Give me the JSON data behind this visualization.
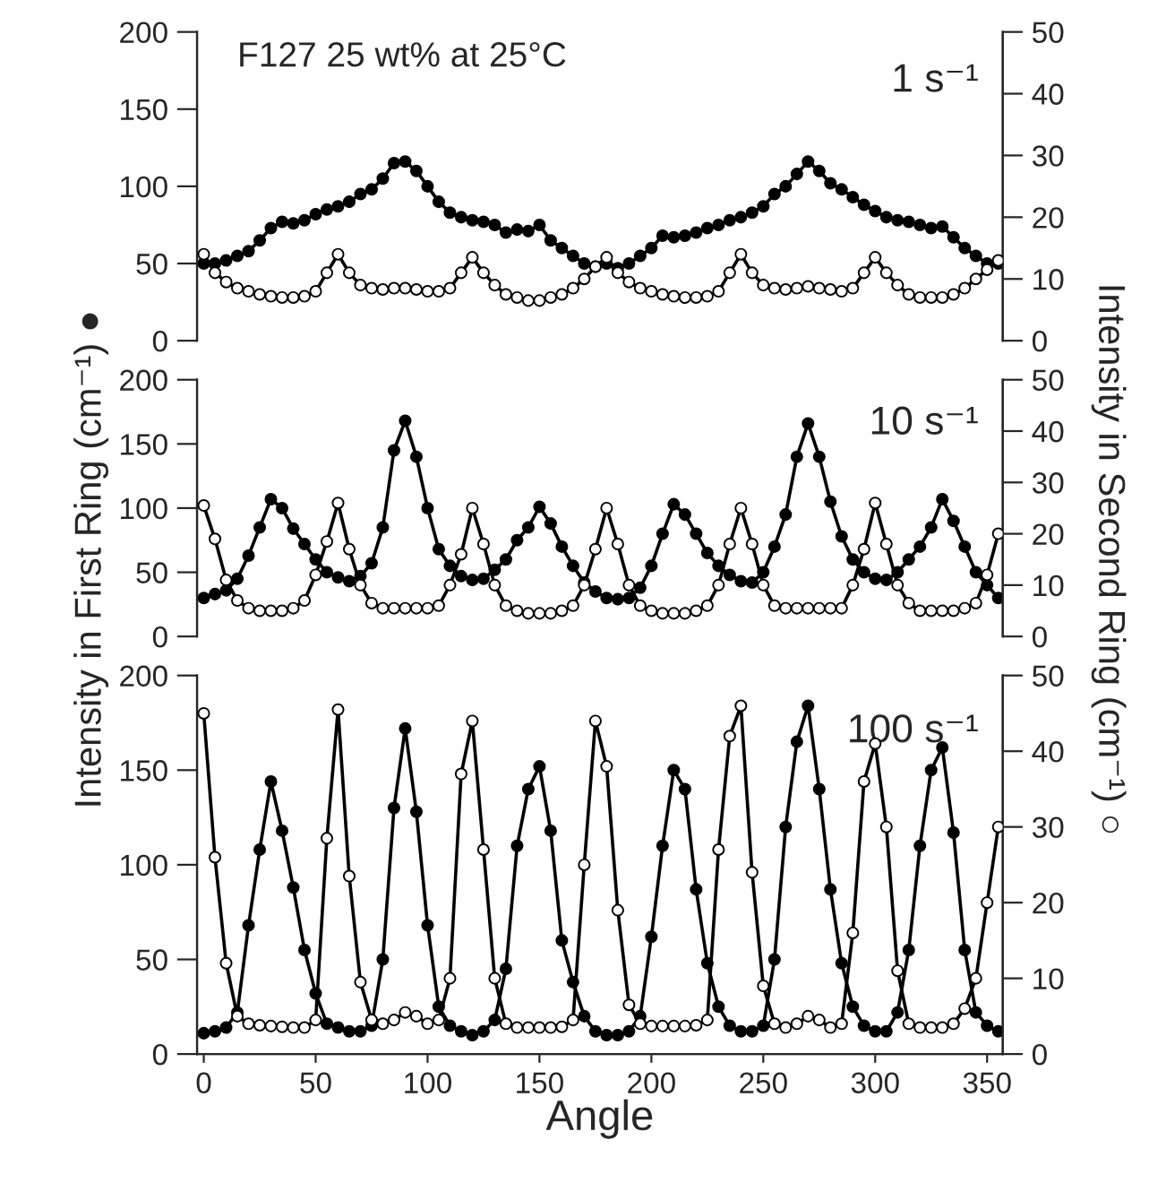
{
  "chart_data": [
    {
      "type": "line",
      "annotations": [
        "F127 25 wt% at 25°C",
        "1 s⁻¹"
      ],
      "x": [
        0,
        5,
        10,
        15,
        20,
        25,
        30,
        35,
        40,
        45,
        50,
        55,
        60,
        65,
        70,
        75,
        80,
        85,
        90,
        95,
        100,
        105,
        110,
        115,
        120,
        125,
        130,
        135,
        140,
        145,
        150,
        155,
        160,
        165,
        170,
        175,
        180,
        185,
        190,
        195,
        200,
        205,
        210,
        215,
        220,
        225,
        230,
        235,
        240,
        245,
        250,
        255,
        260,
        265,
        270,
        275,
        280,
        285,
        290,
        295,
        300,
        305,
        310,
        315,
        320,
        325,
        330,
        335,
        340,
        345,
        350,
        355
      ],
      "xlim": [
        -3,
        357
      ],
      "ylim": [
        0,
        200
      ],
      "yticks": [
        0,
        50,
        100,
        150,
        200
      ],
      "y2lim": [
        0,
        50
      ],
      "y2ticks": [
        0,
        10,
        20,
        30,
        40,
        50
      ],
      "tick_labels": "y",
      "marker": "circle",
      "line_style": "solid",
      "grid": false,
      "legend": false,
      "series": [
        {
          "color": "#000000",
          "values": [
            50,
            50,
            52,
            55,
            58,
            65,
            73,
            77,
            76,
            78,
            82,
            85,
            87,
            90,
            95,
            98,
            105,
            115,
            116,
            110,
            100,
            90,
            83,
            80,
            78,
            77,
            75,
            70,
            72,
            71,
            75,
            65,
            60,
            55,
            50,
            48,
            50,
            47,
            50,
            55,
            60,
            68,
            67,
            68,
            70,
            73,
            75,
            78,
            80,
            83,
            87,
            95,
            100,
            108,
            116,
            110,
            102,
            98,
            93,
            88,
            84,
            80,
            78,
            77,
            75,
            73,
            74,
            67,
            60,
            55,
            50,
            50
          ]
        },
        {
          "color": "#ffffff",
          "axis": "y2",
          "values": [
            14,
            11,
            9.5,
            8.5,
            8,
            7.5,
            7.2,
            7,
            7,
            7.2,
            8,
            11,
            14,
            11,
            9,
            8.5,
            8.3,
            8.5,
            8.5,
            8.3,
            8,
            8,
            8.5,
            11,
            13.5,
            11,
            9,
            7.5,
            7,
            6.5,
            6.5,
            7,
            7.5,
            8.5,
            10,
            12,
            13.5,
            11,
            9.5,
            8.5,
            8,
            7.5,
            7.2,
            7,
            7,
            7.2,
            8,
            11,
            14,
            11,
            9,
            8.5,
            8.3,
            8.5,
            8.8,
            8.5,
            8.3,
            8,
            8.5,
            11,
            13.5,
            11,
            9,
            7.5,
            7,
            7,
            7,
            7.5,
            8.5,
            10,
            11.5,
            13
          ]
        }
      ]
    },
    {
      "type": "line",
      "annotations": [
        "10 s⁻¹"
      ],
      "ylabel": "Intensity in First Ring (cm⁻¹) ●",
      "y2label": "Intensity in Second Ring (cm⁻¹) ○",
      "x": [
        0,
        5,
        10,
        15,
        20,
        25,
        30,
        35,
        40,
        45,
        50,
        55,
        60,
        65,
        70,
        75,
        80,
        85,
        90,
        95,
        100,
        105,
        110,
        115,
        120,
        125,
        130,
        135,
        140,
        145,
        150,
        155,
        160,
        165,
        170,
        175,
        180,
        185,
        190,
        195,
        200,
        205,
        210,
        215,
        220,
        225,
        230,
        235,
        240,
        245,
        250,
        255,
        260,
        265,
        270,
        275,
        280,
        285,
        290,
        295,
        300,
        305,
        310,
        315,
        320,
        325,
        330,
        335,
        340,
        345,
        350,
        355
      ],
      "xlim": [
        -3,
        357
      ],
      "ylim": [
        0,
        200
      ],
      "yticks": [
        0,
        50,
        100,
        150,
        200
      ],
      "y2lim": [
        0,
        50
      ],
      "y2ticks": [
        0,
        10,
        20,
        30,
        40,
        50
      ],
      "tick_labels": "y",
      "marker": "circle",
      "line_style": "solid",
      "grid": false,
      "legend": false,
      "series": [
        {
          "color": "#000000",
          "values": [
            30,
            33,
            36,
            45,
            63,
            85,
            107,
            100,
            84,
            72,
            60,
            50,
            46,
            43,
            47,
            57,
            85,
            145,
            168,
            140,
            100,
            68,
            55,
            47,
            44,
            45,
            52,
            60,
            75,
            85,
            101,
            88,
            70,
            55,
            42,
            35,
            30,
            29,
            30,
            38,
            55,
            80,
            103,
            95,
            80,
            65,
            55,
            48,
            43,
            42,
            50,
            70,
            95,
            140,
            166,
            140,
            105,
            78,
            60,
            50,
            45,
            44,
            50,
            60,
            70,
            85,
            107,
            90,
            70,
            50,
            40,
            30
          ]
        },
        {
          "color": "#ffffff",
          "axis": "y2",
          "values": [
            25.5,
            19,
            11,
            7,
            5.5,
            5,
            5,
            5,
            5.5,
            7,
            12,
            18.5,
            26,
            17,
            10,
            6.5,
            5.5,
            5.5,
            5.5,
            5.5,
            5.5,
            6,
            10,
            16,
            25,
            18,
            10,
            6,
            5,
            4.5,
            4.5,
            4.5,
            5,
            6,
            10,
            17,
            25,
            18,
            10,
            6,
            5,
            4.5,
            4.5,
            4.5,
            5,
            6,
            10,
            18,
            25,
            18,
            10,
            6,
            5.5,
            5.5,
            5.5,
            5.5,
            5.5,
            5.5,
            10,
            17,
            26,
            18,
            10,
            6.5,
            5,
            5,
            5,
            5,
            5.5,
            6.5,
            12,
            20
          ]
        }
      ]
    },
    {
      "type": "line",
      "annotations": [
        "100 s⁻¹"
      ],
      "xlabel": "Angle",
      "x": [
        0,
        5,
        10,
        15,
        20,
        25,
        30,
        35,
        40,
        45,
        50,
        55,
        60,
        65,
        70,
        75,
        80,
        85,
        90,
        95,
        100,
        105,
        110,
        115,
        120,
        125,
        130,
        135,
        140,
        145,
        150,
        155,
        160,
        165,
        170,
        175,
        180,
        185,
        190,
        195,
        200,
        205,
        210,
        215,
        220,
        225,
        230,
        235,
        240,
        245,
        250,
        255,
        260,
        265,
        270,
        275,
        280,
        285,
        290,
        295,
        300,
        305,
        310,
        315,
        320,
        325,
        330,
        335,
        340,
        345,
        350,
        355
      ],
      "xlim": [
        -3,
        357
      ],
      "xticks": [
        0,
        50,
        100,
        150,
        200,
        250,
        300,
        350
      ],
      "ylim": [
        0,
        200
      ],
      "yticks": [
        0,
        50,
        100,
        150,
        200
      ],
      "y2lim": [
        0,
        50
      ],
      "y2ticks": [
        0,
        10,
        20,
        30,
        40,
        50
      ],
      "marker": "circle",
      "line_style": "solid",
      "grid": false,
      "legend": false,
      "series": [
        {
          "color": "#000000",
          "values": [
            11,
            12,
            14,
            22,
            68,
            108,
            144,
            118,
            88,
            55,
            32,
            16,
            14,
            12,
            12,
            15,
            50,
            130,
            172,
            128,
            68,
            25,
            15,
            12,
            10,
            12,
            18,
            45,
            110,
            140,
            152,
            118,
            60,
            38,
            20,
            12,
            10,
            10,
            12,
            20,
            62,
            110,
            150,
            140,
            87,
            48,
            25,
            15,
            12,
            12,
            15,
            50,
            120,
            165,
            184,
            140,
            87,
            48,
            25,
            15,
            12,
            12,
            22,
            55,
            110,
            150,
            162,
            117,
            55,
            22,
            15,
            12
          ]
        },
        {
          "color": "#ffffff",
          "axis": "y2",
          "values": [
            45,
            26,
            12,
            5,
            4,
            3.8,
            3.7,
            3.6,
            3.5,
            3.5,
            4.5,
            28.5,
            45.5,
            23.5,
            9.5,
            4.5,
            4,
            4.5,
            5.5,
            5,
            4,
            4.5,
            10,
            37,
            44,
            27,
            10,
            4,
            3.5,
            3.5,
            3.5,
            3.5,
            3.6,
            4.5,
            25,
            44,
            38,
            19,
            6.5,
            4,
            3.7,
            3.7,
            3.7,
            3.7,
            3.8,
            4.5,
            27,
            42,
            46,
            24,
            9,
            4,
            3.5,
            4,
            5,
            4.5,
            3.5,
            4,
            16,
            36,
            41,
            30,
            11,
            4,
            3.5,
            3.5,
            3.5,
            4,
            6,
            10,
            20,
            30
          ]
        }
      ]
    }
  ]
}
